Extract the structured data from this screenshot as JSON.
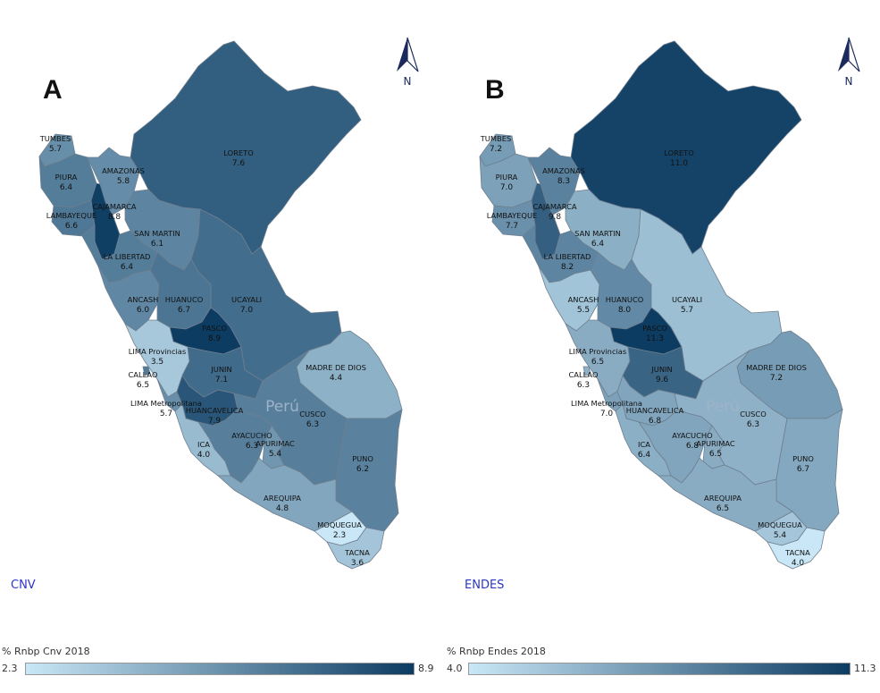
{
  "colors": {
    "low": "#c9e7f6",
    "high": "#0d3c62",
    "border": "#6f7f8f",
    "text": "#111111",
    "source": "#2b35c4"
  },
  "country_label": "Perú",
  "panels": [
    {
      "letter": "A",
      "source": "CNV",
      "legend": {
        "title": "% Rnbp  Cnv 2018",
        "min": "2.3",
        "max": "8.9",
        "min_value": 2.3,
        "max_value": 8.9
      },
      "north_label": "N"
    },
    {
      "letter": "B",
      "source": "ENDES",
      "legend": {
        "title": "% Rnbp Endes 2018",
        "min": "4.0",
        "max": "11.3",
        "min_value": 4.0,
        "max_value": 11.3
      },
      "north_label": "N"
    }
  ],
  "regions": [
    {
      "name": "TUMBES",
      "cnv": "5.7",
      "endes": "7.2"
    },
    {
      "name": "PIURA",
      "cnv": "6.4",
      "endes": "7.0"
    },
    {
      "name": "LAMBAYEQUE",
      "cnv": "6.6",
      "endes": "7.7"
    },
    {
      "name": "AMAZONAS",
      "cnv": "5.8",
      "endes": "8.3"
    },
    {
      "name": "CAJAMARCA",
      "cnv": "8.8",
      "endes": "9.8"
    },
    {
      "name": "LORETO",
      "cnv": "7.6",
      "endes": "11.0"
    },
    {
      "name": "SAN MARTIN",
      "cnv": "6.1",
      "endes": "6.4"
    },
    {
      "name": "LA LIBERTAD",
      "cnv": "6.4",
      "endes": "8.2"
    },
    {
      "name": "ANCASH",
      "cnv": "6.0",
      "endes": "5.5"
    },
    {
      "name": "HUANUCO",
      "cnv": "6.7",
      "endes": "8.0"
    },
    {
      "name": "UCAYALI",
      "cnv": "7.0",
      "endes": "5.7"
    },
    {
      "name": "PASCO",
      "cnv": "8.9",
      "endes": "11.3"
    },
    {
      "name": "LIMA Provincias",
      "cnv": "3.5",
      "endes": "6.5"
    },
    {
      "name": "CALLAO",
      "cnv": "6.5",
      "endes": "6.3"
    },
    {
      "name": "JUNIN",
      "cnv": "7.1",
      "endes": "9.6"
    },
    {
      "name": "MADRE DE DIOS",
      "cnv": "4.4",
      "endes": "7.2"
    },
    {
      "name": "LIMA Metropolitana",
      "cnv": "5.7",
      "endes": "7.0"
    },
    {
      "name": "HUANCAVELICA",
      "cnv": "7.9",
      "endes": "6.8"
    },
    {
      "name": "CUSCO",
      "cnv": "6.3",
      "endes": "6.3"
    },
    {
      "name": "AYACUCHO",
      "cnv": "6.3",
      "endes": "6.8"
    },
    {
      "name": "ICA",
      "cnv": "4.0",
      "endes": "6.4"
    },
    {
      "name": "APURIMAC",
      "cnv": "5.4",
      "endes": "6.5"
    },
    {
      "name": "PUNO",
      "cnv": "6.2",
      "endes": "6.7"
    },
    {
      "name": "AREQUIPA",
      "cnv": "4.8",
      "endes": "6.5"
    },
    {
      "name": "MOQUEGUA",
      "cnv": "2.3",
      "endes": "5.4"
    },
    {
      "name": "TACNA",
      "cnv": "3.6",
      "endes": "4.0"
    }
  ]
}
